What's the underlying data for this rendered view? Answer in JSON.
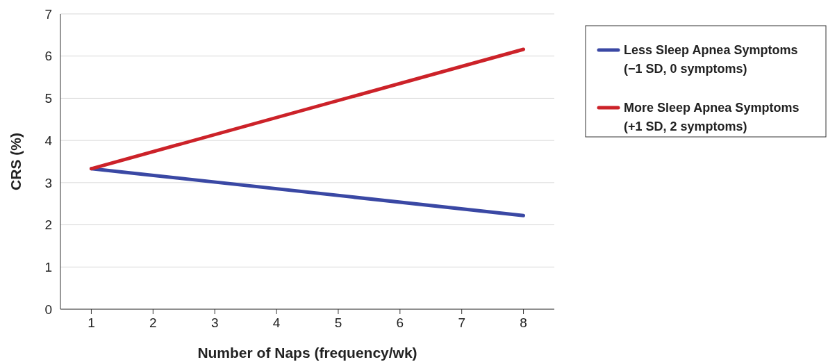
{
  "chart_data": {
    "type": "line",
    "xlabel": "Number of Naps (frequency/wk)",
    "ylabel": "CRS (%)",
    "x": [
      1,
      8
    ],
    "series": [
      {
        "name": "Less Sleep Apnea Symptoms (−1 SD, 0 symptoms)",
        "color": "#3a48a4",
        "values": [
          3.33,
          2.22
        ]
      },
      {
        "name": "More Sleep Apnea Symptoms (+1 SD, 2 symptoms)",
        "color": "#cc2229",
        "values": [
          3.33,
          6.16
        ]
      }
    ],
    "xlim": [
      0.5,
      8.5
    ],
    "xticks": [
      1,
      2,
      3,
      4,
      5,
      6,
      7,
      8
    ],
    "ylim": [
      0,
      7
    ],
    "yticks": [
      0,
      1,
      2,
      3,
      4,
      5,
      6,
      7
    ],
    "grid": "y",
    "legend": "right",
    "marker": "none",
    "line_style": "solid"
  }
}
